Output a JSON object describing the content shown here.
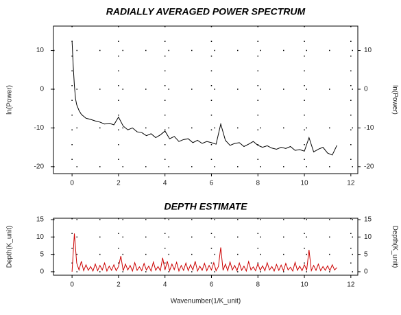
{
  "chart_data": [
    {
      "type": "line",
      "title": "RADIALLY AVERAGED POWER SPECTRUM",
      "y_label": "ln(Power)",
      "y2_label": "ln(Power)",
      "color": "#000000",
      "grid": true,
      "xlim": [
        -0.8,
        12.3
      ],
      "xticks": [
        0,
        2,
        4,
        6,
        8,
        10,
        12
      ],
      "ylim": [
        -21.8,
        16.3
      ],
      "yticks": [
        -20,
        -10,
        0,
        10
      ],
      "y2lim": [
        -21.8,
        16.3
      ],
      "y2ticks": [
        -20,
        -10,
        0,
        10
      ],
      "x": [
        0,
        0.05,
        0.1,
        0.15,
        0.2,
        0.3,
        0.4,
        0.5,
        0.6,
        0.8,
        1.0,
        1.2,
        1.4,
        1.6,
        1.8,
        2.0,
        2.2,
        2.4,
        2.6,
        2.8,
        3.0,
        3.2,
        3.4,
        3.6,
        3.8,
        4.0,
        4.2,
        4.4,
        4.6,
        4.8,
        5.0,
        5.2,
        5.4,
        5.6,
        5.8,
        6.0,
        6.2,
        6.4,
        6.6,
        6.8,
        7.0,
        7.2,
        7.4,
        7.6,
        7.8,
        8.0,
        8.2,
        8.4,
        8.6,
        8.8,
        9.0,
        9.2,
        9.4,
        9.6,
        9.8,
        10.0,
        10.2,
        10.4,
        10.6,
        10.8,
        11.0,
        11.2,
        11.4
      ],
      "values": [
        12.5,
        6,
        1,
        -2.5,
        -4,
        -5.5,
        -6.5,
        -7,
        -7.5,
        -7.8,
        -8.2,
        -8.5,
        -9,
        -8.8,
        -9.2,
        -7.2,
        -9.5,
        -10.5,
        -10,
        -11,
        -11.2,
        -12,
        -11.5,
        -12.5,
        -11.8,
        -10.8,
        -12.8,
        -12.2,
        -13.5,
        -13,
        -12.8,
        -13.8,
        -13.2,
        -14,
        -13.5,
        -13.8,
        -14.2,
        -9,
        -13.2,
        -14.5,
        -14,
        -13.8,
        -14.8,
        -14.2,
        -13.5,
        -14.5,
        -15,
        -14.6,
        -15.2,
        -15.5,
        -15,
        -15.3,
        -14.8,
        -15.8,
        -15.6,
        -16,
        -12.5,
        -16.2,
        -15.5,
        -15,
        -16.5,
        -17,
        -14.5
      ]
    },
    {
      "type": "line",
      "title": "DEPTH ESTIMATE",
      "y_label": "Depth(K_unit)",
      "y2_label": "Depth(K_unit)",
      "x_label": "Wavenumber(1/K_unit)",
      "color": "#cc0000",
      "grid": true,
      "xlim": [
        -0.8,
        12.3
      ],
      "xticks": [
        0,
        2,
        4,
        6,
        8,
        10,
        12
      ],
      "ylim": [
        -1,
        15.4
      ],
      "yticks": [
        0,
        5,
        10,
        15
      ],
      "y2lim": [
        -1,
        15.4
      ],
      "y2ticks": [
        0,
        5,
        10,
        15
      ],
      "x": [
        0,
        0.1,
        0.2,
        0.3,
        0.4,
        0.5,
        0.6,
        0.7,
        0.8,
        0.9,
        1.0,
        1.1,
        1.2,
        1.3,
        1.4,
        1.5,
        1.6,
        1.7,
        1.8,
        1.9,
        2.0,
        2.1,
        2.2,
        2.3,
        2.4,
        2.5,
        2.6,
        2.7,
        2.8,
        2.9,
        3.0,
        3.1,
        3.2,
        3.3,
        3.4,
        3.5,
        3.6,
        3.7,
        3.8,
        3.9,
        4.0,
        4.1,
        4.2,
        4.3,
        4.4,
        4.5,
        4.6,
        4.7,
        4.8,
        4.9,
        5.0,
        5.1,
        5.2,
        5.3,
        5.4,
        5.5,
        5.6,
        5.7,
        5.8,
        5.9,
        6.0,
        6.1,
        6.2,
        6.3,
        6.4,
        6.5,
        6.6,
        6.7,
        6.8,
        6.9,
        7.0,
        7.1,
        7.2,
        7.3,
        7.4,
        7.5,
        7.6,
        7.7,
        7.8,
        7.9,
        8.0,
        8.1,
        8.2,
        8.3,
        8.4,
        8.5,
        8.6,
        8.7,
        8.8,
        8.9,
        9.0,
        9.1,
        9.2,
        9.3,
        9.4,
        9.5,
        9.6,
        9.7,
        9.8,
        9.9,
        10.0,
        10.1,
        10.2,
        10.3,
        10.4,
        10.5,
        10.6,
        10.7,
        10.8,
        10.9,
        11.0,
        11.1,
        11.2,
        11.3,
        11.4
      ],
      "values": [
        0,
        11,
        2.5,
        0.5,
        3,
        0.3,
        2,
        0.4,
        1.5,
        0.2,
        2.2,
        0.3,
        1.8,
        0.5,
        2.5,
        0.2,
        1.6,
        0.4,
        2,
        0.3,
        1.5,
        4.5,
        0.3,
        2.2,
        0.5,
        1.8,
        0.2,
        2.6,
        0.4,
        1.4,
        0.3,
        2.4,
        0.5,
        1.6,
        0.2,
        2.8,
        0.4,
        1.5,
        0.3,
        4,
        0.5,
        3,
        0.3,
        2.2,
        0.6,
        2.7,
        0.2,
        1.8,
        0.4,
        2.5,
        0.3,
        2,
        0.5,
        3,
        0.2,
        1.6,
        0.4,
        2.4,
        0.3,
        1.8,
        0.5,
        2.6,
        0.3,
        1.5,
        7,
        0.4,
        2.2,
        0.3,
        2.8,
        0.5,
        1.8,
        0.3,
        2.5,
        0.4,
        1.6,
        0.2,
        2.9,
        0.5,
        1.4,
        0.3,
        2.3,
        0.4,
        1.7,
        0.3,
        2.6,
        0.5,
        1.5,
        0.2,
        2.1,
        0.4,
        1.9,
        0.3,
        2.4,
        0.5,
        1.3,
        0.2,
        2.7,
        0.4,
        1.6,
        0.3,
        2,
        0.5,
        6.3,
        0.3,
        1.8,
        0.4,
        2.2,
        0.3,
        1.5,
        0.4,
        1.7,
        0.3,
        2,
        0.5,
        1.2
      ]
    }
  ]
}
